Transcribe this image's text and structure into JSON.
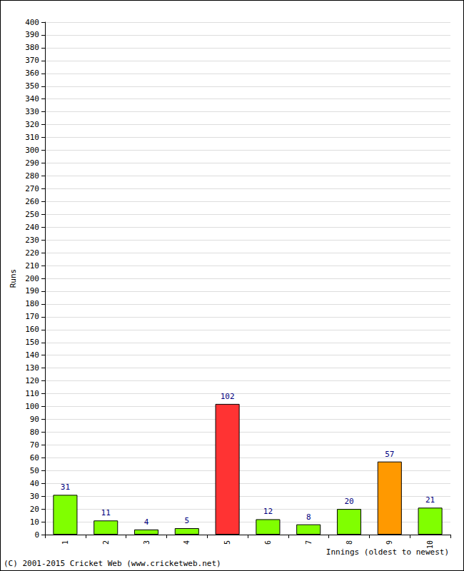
{
  "chart_data": {
    "type": "bar",
    "categories": [
      "1",
      "2",
      "3",
      "4",
      "5",
      "6",
      "7",
      "8",
      "9",
      "10"
    ],
    "values": [
      31,
      11,
      4,
      5,
      102,
      12,
      8,
      20,
      57,
      21
    ],
    "colors": [
      "#80ff00",
      "#80ff00",
      "#80ff00",
      "#80ff00",
      "#ff3333",
      "#80ff00",
      "#80ff00",
      "#80ff00",
      "#ff9900",
      "#80ff00"
    ],
    "xlabel": "Innings (oldest to newest)",
    "ylabel": "Runs",
    "ylim": [
      0,
      400
    ],
    "yticks": [
      0,
      10,
      20,
      30,
      40,
      50,
      60,
      70,
      80,
      90,
      100,
      110,
      120,
      130,
      140,
      150,
      160,
      170,
      180,
      190,
      200,
      210,
      220,
      230,
      240,
      250,
      260,
      270,
      280,
      290,
      300,
      310,
      320,
      330,
      340,
      350,
      360,
      370,
      380,
      390,
      400
    ],
    "grid": true,
    "data_labels": true,
    "annotations": [
      "(C) 2001-2015 Cricket Web (www.cricketweb.net)"
    ]
  }
}
